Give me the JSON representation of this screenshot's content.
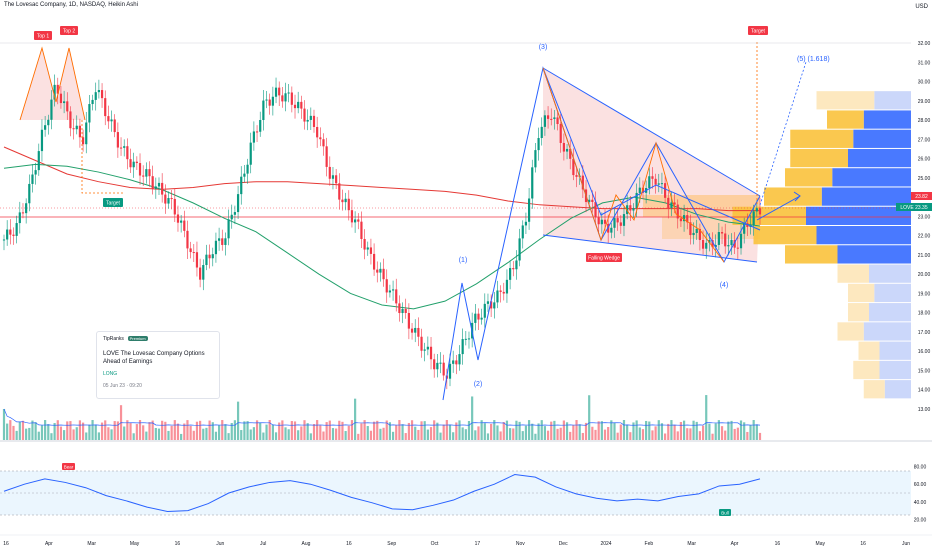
{
  "header": {
    "title": "The Lovesac Company, 1D, NASDAQ, Heikin Ashi",
    "currency": "USD"
  },
  "price_axis": {
    "ticks": [
      "32.00",
      "31.00",
      "30.00",
      "29.00",
      "28.00",
      "27.00",
      "26.00",
      "25.00",
      "24.00",
      "23.00",
      "22.00",
      "21.00",
      "20.00",
      "19.00",
      "18.00",
      "17.00",
      "16.00",
      "15.00",
      "14.00",
      "13.00"
    ],
    "badges": [
      {
        "text": "23.82",
        "color": "#f23645"
      },
      {
        "text": "LOVE  23.35",
        "color": "#089981"
      }
    ]
  },
  "rsi_axis": {
    "ticks": [
      "80.00",
      "60.00",
      "40.00",
      "20.00"
    ]
  },
  "time_axis": {
    "ticks": [
      "16",
      "Apr",
      "Mar",
      "May",
      "16",
      "Jun",
      "Jul",
      "Aug",
      "16",
      "Sep",
      "Oct",
      "17",
      "Nov",
      "Dec",
      "2024",
      "Feb",
      "Mar",
      "Apr",
      "16",
      "May",
      "16",
      "Jun"
    ]
  },
  "annotations": {
    "top1": "Top 1",
    "top2": "Top 2",
    "target_left": "Target",
    "target_right": "Target",
    "falling_wedge": "Falling Wedge",
    "wave1": "(1)",
    "wave2": "(2)",
    "wave3": "(3)",
    "wave4": "(4)",
    "wave5": "(5) (1.618)",
    "rsi_bear": "Bear",
    "rsi_bull": "Bull"
  },
  "news_card": {
    "source": "TipRanks",
    "tag": "Premium",
    "title": "LOVE The Lovesac Company Options Ahead of Earnings",
    "position": "LONG",
    "date": "05 Jun 23 · 09:20"
  },
  "colors": {
    "up": "#089981",
    "down": "#f23645",
    "ma_green": "#22a06b",
    "ma_red": "#e53935",
    "wedge": "#2962ff",
    "rsi_line": "#2962ff",
    "rsi_band": "#e3f2fd"
  },
  "chart_data": {
    "type": "candlestick",
    "ylim": [
      13,
      32
    ],
    "close_approx": [
      21.8,
      22.5,
      24.5,
      27.4,
      29.8,
      28.0,
      26.9,
      29.8,
      28.1,
      26.5,
      25.6,
      25.1,
      24.3,
      23.5,
      21.8,
      20.0,
      21.3,
      22.0,
      24.2,
      26.8,
      28.9,
      29.4,
      29.1,
      28.3,
      27.5,
      25.2,
      23.8,
      22.7,
      21.0,
      19.8,
      18.7,
      17.5,
      16.4,
      15.4,
      14.8,
      16.0,
      17.5,
      18.3,
      18.9,
      20.2,
      22.8,
      27.4,
      28.4,
      26.5,
      25.0,
      23.6,
      22.4,
      22.6,
      23.4,
      24.5,
      25.0,
      23.7,
      22.9,
      22.1,
      21.4,
      22.0,
      21.3,
      22.6,
      23.4
    ],
    "ma_green_approx": [
      25.5,
      25.7,
      25.6,
      25.3,
      24.9,
      24.4,
      23.7,
      22.9,
      22.2,
      21.1,
      20.0,
      19.0,
      18.4,
      18.2,
      18.6,
      19.5,
      20.6,
      21.8,
      22.9,
      23.7,
      24.0,
      23.7,
      23.1,
      22.7,
      22.5
    ],
    "ma_red_approx": [
      26.6,
      25.9,
      25.2,
      24.8,
      24.5,
      24.4,
      24.5,
      24.7,
      24.8,
      24.8,
      24.7,
      24.6,
      24.5,
      24.4,
      24.3,
      24.1,
      23.8,
      23.6,
      23.5,
      23.4,
      23.4,
      23.4,
      23.4,
      23.3,
      23.3
    ],
    "rsi_approx": [
      52,
      60,
      66,
      62,
      56,
      47,
      41,
      34,
      29,
      30,
      38,
      50,
      57,
      62,
      64,
      60,
      53,
      45,
      39,
      32,
      31,
      36,
      42,
      52,
      60,
      71,
      68,
      57,
      49,
      44,
      41,
      43,
      41,
      46,
      49,
      58,
      60,
      66
    ]
  }
}
